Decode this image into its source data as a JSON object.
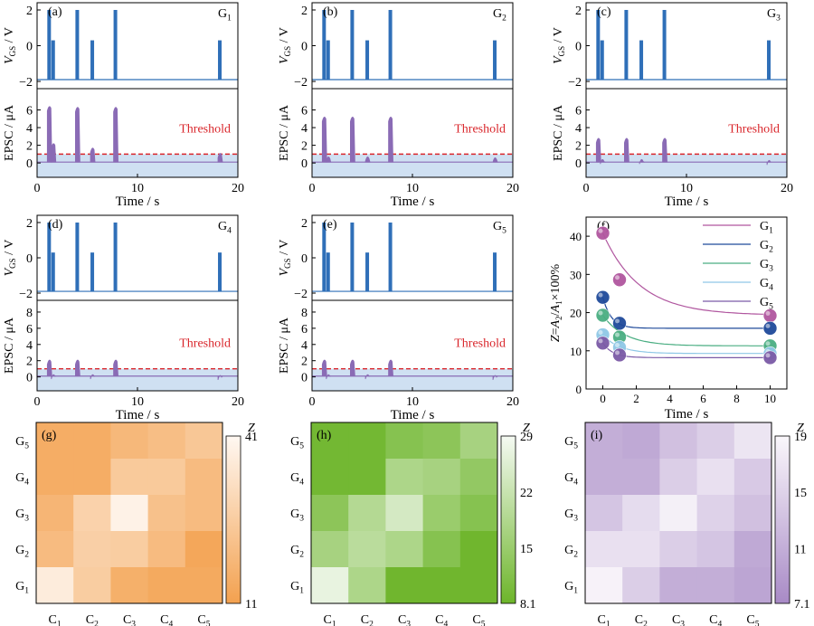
{
  "colors": {
    "gate": "#2f6fb8",
    "epsc": "#8a6bb5",
    "band": "#cfe0f2",
    "threshold": "#d9262b",
    "fit_colors": [
      "#b0569f",
      "#1f4a9a",
      "#4aae82",
      "#8fc8e6",
      "#7b5aa6"
    ],
    "heat_g": [
      "#f3a14f",
      "#fff8f2"
    ],
    "heat_h": [
      "#6db52a",
      "#f5faf3"
    ],
    "heat_i": [
      "#a88ac6",
      "#faf7fb"
    ]
  },
  "labels": {
    "vgs_main": "V",
    "vgs_sub": "GS",
    "vgs_unit": " / V",
    "epsc_axis": "EPSC / μA",
    "time_axis": "Time / s",
    "threshold": "Threshold",
    "z_axis": "Z=A2/A1×100%",
    "colorbar_title": "Z"
  },
  "chart_data": [
    {
      "type": "line",
      "panel": "(a)",
      "gate": "G1",
      "xlim": [
        0,
        20
      ],
      "vgs_ticks": [
        2,
        0,
        -2
      ],
      "epsc_ticks": [
        0,
        2,
        4,
        6
      ],
      "x_ticks": [
        0,
        10,
        20
      ],
      "pulses": [
        {
          "t": 1.2,
          "v": 2,
          "epsc": 6.5
        },
        {
          "t": 1.6,
          "v": 0.3,
          "epsc": 2.3
        },
        {
          "t": 4.0,
          "v": 2,
          "epsc": 6.4
        },
        {
          "t": 5.5,
          "v": 0.3,
          "epsc": 1.8
        },
        {
          "t": 7.8,
          "v": 2,
          "epsc": 6.4
        },
        {
          "t": 18.2,
          "v": 0.3,
          "epsc": 1.2
        }
      ],
      "threshold": 1.0
    },
    {
      "type": "line",
      "panel": "(b)",
      "gate": "G2",
      "xlim": [
        0,
        20
      ],
      "vgs_ticks": [
        2,
        0,
        -2
      ],
      "epsc_ticks": [
        0,
        2,
        4,
        6
      ],
      "x_ticks": [
        0,
        10,
        20
      ],
      "pulses": [
        {
          "t": 1.2,
          "v": 2,
          "epsc": 5.3
        },
        {
          "t": 1.6,
          "v": 0.3,
          "epsc": 0.8
        },
        {
          "t": 4.0,
          "v": 2,
          "epsc": 5.3
        },
        {
          "t": 5.5,
          "v": 0.3,
          "epsc": 0.8
        },
        {
          "t": 7.8,
          "v": 2,
          "epsc": 5.3
        },
        {
          "t": 18.2,
          "v": 0.3,
          "epsc": 0.7
        }
      ],
      "threshold": 1.0
    },
    {
      "type": "line",
      "panel": "(c)",
      "gate": "G3",
      "xlim": [
        0,
        20
      ],
      "vgs_ticks": [
        2,
        0,
        -2
      ],
      "epsc_ticks": [
        0,
        2,
        4,
        6
      ],
      "x_ticks": [
        0,
        10,
        20
      ],
      "pulses": [
        {
          "t": 1.2,
          "v": 2,
          "epsc": 2.9
        },
        {
          "t": 1.6,
          "v": 0.3,
          "epsc": 0.5
        },
        {
          "t": 4.0,
          "v": 2,
          "epsc": 2.9
        },
        {
          "t": 5.5,
          "v": 0.3,
          "epsc": 0.5
        },
        {
          "t": 7.8,
          "v": 2,
          "epsc": 2.9
        },
        {
          "t": 18.2,
          "v": 0.3,
          "epsc": 0.4
        }
      ],
      "threshold": 1.0
    },
    {
      "type": "line",
      "panel": "(d)",
      "gate": "G4",
      "xlim": [
        0,
        20
      ],
      "vgs_ticks": [
        2,
        0,
        -2
      ],
      "epsc_ticks": [
        0,
        2,
        4,
        6,
        8
      ],
      "x_ticks": [
        0,
        10,
        20
      ],
      "pulses": [
        {
          "t": 1.2,
          "v": 2,
          "epsc": 2.2
        },
        {
          "t": 1.6,
          "v": 0.3,
          "epsc": 0.4
        },
        {
          "t": 4.0,
          "v": 2,
          "epsc": 2.2
        },
        {
          "t": 5.5,
          "v": 0.3,
          "epsc": 0.4
        },
        {
          "t": 7.8,
          "v": 2,
          "epsc": 2.2
        },
        {
          "t": 18.2,
          "v": 0.3,
          "epsc": 0.3
        }
      ],
      "threshold": 1.0
    },
    {
      "type": "line",
      "panel": "(e)",
      "gate": "G5",
      "xlim": [
        0,
        20
      ],
      "vgs_ticks": [
        2,
        0,
        -2
      ],
      "epsc_ticks": [
        0,
        2,
        4,
        6,
        8
      ],
      "x_ticks": [
        0,
        10,
        20
      ],
      "pulses": [
        {
          "t": 1.2,
          "v": 2,
          "epsc": 2.2
        },
        {
          "t": 1.6,
          "v": 0.3,
          "epsc": 0.4
        },
        {
          "t": 4.0,
          "v": 2,
          "epsc": 2.2
        },
        {
          "t": 5.5,
          "v": 0.3,
          "epsc": 0.4
        },
        {
          "t": 7.8,
          "v": 2,
          "epsc": 2.2
        },
        {
          "t": 18.2,
          "v": 0.3,
          "epsc": 0.3
        }
      ],
      "threshold": 1.0
    },
    {
      "type": "scatter",
      "panel": "(f)",
      "xlabel": "Time / s",
      "ylabel": "Z=A2/A1×100%",
      "xlim": [
        -1,
        11
      ],
      "ylim": [
        0,
        45
      ],
      "x_ticks": [
        0,
        2,
        4,
        6,
        8,
        10
      ],
      "y_ticks": [
        0,
        10,
        20,
        30,
        40
      ],
      "legend_position": "top-right",
      "series": [
        {
          "name": "G1",
          "x": [
            0,
            1,
            10
          ],
          "y": [
            40.8,
            28.6,
            19.2
          ],
          "fit": {
            "a": 19.3,
            "b": 21.5,
            "tau": 2.2
          }
        },
        {
          "name": "G2",
          "x": [
            0,
            1,
            10
          ],
          "y": [
            24.0,
            17.2,
            15.9
          ],
          "fit": {
            "a": 15.9,
            "b": 8.1,
            "tau": 0.5
          }
        },
        {
          "name": "G3",
          "x": [
            0,
            1,
            10
          ],
          "y": [
            19.3,
            13.6,
            11.3
          ],
          "fit": {
            "a": 11.3,
            "b": 8.0,
            "tau": 1.3
          }
        },
        {
          "name": "G4",
          "x": [
            0,
            1,
            10
          ],
          "y": [
            14.2,
            10.9,
            9.3
          ],
          "fit": {
            "a": 9.3,
            "b": 4.9,
            "tau": 1.0
          }
        },
        {
          "name": "G5",
          "x": [
            0,
            1,
            10
          ],
          "y": [
            12.0,
            8.9,
            8.2
          ],
          "fit": {
            "a": 8.2,
            "b": 3.8,
            "tau": 0.6
          }
        }
      ]
    },
    {
      "type": "heatmap",
      "panel": "(g)",
      "cols": [
        "C1",
        "C2",
        "C3",
        "C4",
        "C5"
      ],
      "rows": [
        "G5",
        "G4",
        "G3",
        "G2",
        "G1"
      ],
      "zlim": [
        11,
        41
      ],
      "colorbar_ticks": [
        41,
        11
      ],
      "values": [
        [
          15,
          15,
          19,
          21,
          24
        ],
        [
          15,
          15,
          25,
          25,
          20
        ],
        [
          18,
          28,
          39,
          22,
          20
        ],
        [
          20,
          27,
          26,
          20,
          13
        ],
        [
          37,
          26,
          16,
          14,
          14
        ]
      ]
    },
    {
      "type": "heatmap",
      "panel": "(h)",
      "cols": [
        "C1",
        "C2",
        "C3",
        "C4",
        "C5"
      ],
      "rows": [
        "G5",
        "G4",
        "G3",
        "G2",
        "G1"
      ],
      "zlim": [
        8.1,
        29
      ],
      "colorbar_ticks": [
        29,
        22,
        15,
        8.1
      ],
      "values": [
        [
          9,
          9,
          12,
          13,
          17
        ],
        [
          9,
          9,
          18,
          17,
          14
        ],
        [
          13,
          19,
          24,
          15,
          12
        ],
        [
          17,
          20,
          18,
          12,
          8.5
        ],
        [
          27,
          18,
          8.5,
          8.5,
          8.5
        ]
      ]
    },
    {
      "type": "heatmap",
      "panel": "(i)",
      "cols": [
        "C1",
        "C2",
        "C3",
        "C4",
        "C5"
      ],
      "rows": [
        "G5",
        "G4",
        "G3",
        "G2",
        "G1"
      ],
      "zlim": [
        7.1,
        19
      ],
      "colorbar_ticks": [
        19,
        15,
        11,
        7.1
      ],
      "values": [
        [
          11,
          10.5,
          13,
          14.5,
          17
        ],
        [
          11,
          11,
          14.5,
          16.5,
          14
        ],
        [
          13.5,
          16,
          18.2,
          15,
          13
        ],
        [
          16.5,
          16.5,
          14.5,
          13.5,
          10.5
        ],
        [
          18.5,
          14.5,
          11,
          11,
          10
        ]
      ]
    }
  ]
}
